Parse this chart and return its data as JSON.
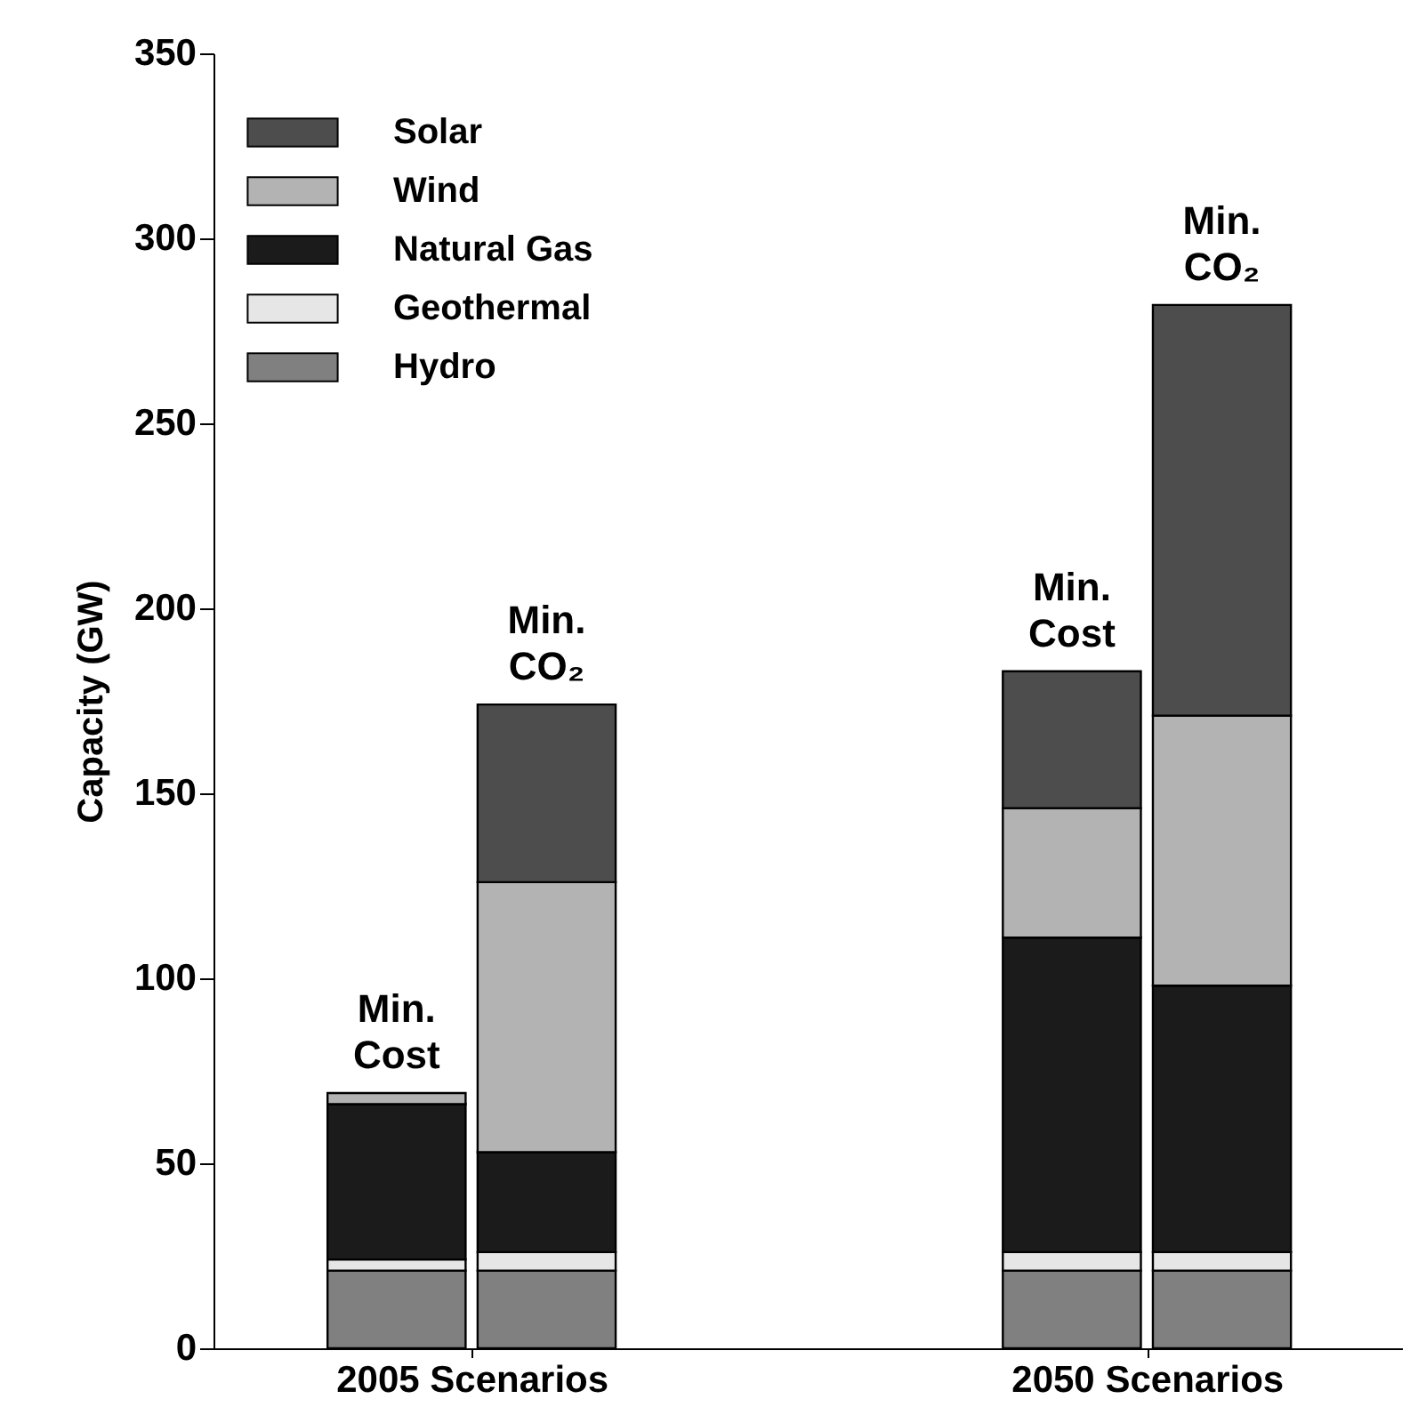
{
  "chart_data": {
    "type": "bar",
    "stacked": true,
    "categories": [
      "Min.\nCost",
      "Min.\nCO₂",
      "Min.\nCost",
      "Min.\nCO₂"
    ],
    "series": [
      {
        "name": "Hydro",
        "color": "#808080",
        "values": [
          21,
          21,
          21,
          21
        ]
      },
      {
        "name": "Geothermal",
        "color": "#e6e6e6",
        "values": [
          3,
          5,
          5,
          5
        ]
      },
      {
        "name": "Natural Gas",
        "color": "#1b1b1b",
        "values": [
          42,
          27,
          85,
          72
        ]
      },
      {
        "name": "Wind",
        "color": "#b3b3b3",
        "values": [
          3,
          73,
          35,
          73
        ]
      },
      {
        "name": "Solar",
        "color": "#4d4d4d",
        "values": [
          0,
          48,
          37,
          111
        ]
      }
    ],
    "ylabel": "Capacity (GW)",
    "ylim": [
      0,
      350
    ],
    "yticks": [
      0,
      50,
      100,
      150,
      200,
      250,
      300,
      350
    ],
    "annotations": [
      "2005 Scenarios",
      "2050 Scenarios"
    ],
    "legend": "top left",
    "grid": false
  }
}
